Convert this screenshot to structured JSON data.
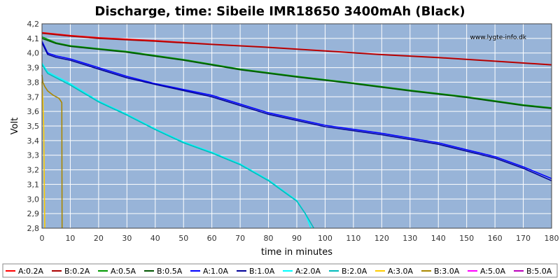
{
  "chart_data": {
    "type": "line",
    "title": "Discharge, time: Sibeile IMR18650 3400mAh (Black)",
    "xlabel": "time in minutes",
    "ylabel": "Volt",
    "xlim": [
      0,
      180
    ],
    "ylim": [
      2.8,
      4.2
    ],
    "x_ticks": [
      0,
      10,
      20,
      30,
      40,
      50,
      60,
      70,
      80,
      90,
      100,
      110,
      120,
      130,
      140,
      150,
      160,
      170,
      180
    ],
    "y_ticks": [
      2.8,
      2.9,
      3.0,
      3.1,
      3.2,
      3.3,
      3.4,
      3.5,
      3.6,
      3.7,
      3.8,
      3.9,
      4.0,
      4.1,
      4.2
    ],
    "y_tick_labels": [
      "2,8",
      "2,9",
      "3,0",
      "3,1",
      "3,2",
      "3,3",
      "3,4",
      "3,5",
      "3,6",
      "3,7",
      "3,8",
      "3,9",
      "4,0",
      "4,1",
      "4,2"
    ],
    "grid": true,
    "background": "#98b4d8",
    "watermark": "www.lygte-info.dk",
    "legend_position": "bottom",
    "series": [
      {
        "name": "A:0.2A",
        "color": "#ff0000",
        "x": [
          0,
          10,
          20,
          40,
          60,
          80,
          100,
          120,
          140,
          160,
          180
        ],
        "y": [
          4.14,
          4.12,
          4.105,
          4.085,
          4.06,
          4.04,
          4.015,
          3.99,
          3.97,
          3.945,
          3.92
        ]
      },
      {
        "name": "B:0.2A",
        "color": "#aa0000",
        "x": [
          0,
          10,
          20,
          40,
          60,
          80,
          100,
          120,
          140,
          160,
          180
        ],
        "y": [
          4.135,
          4.115,
          4.1,
          4.08,
          4.058,
          4.038,
          4.013,
          3.988,
          3.968,
          3.943,
          3.918
        ]
      },
      {
        "name": "A:0.5A",
        "color": "#009900",
        "x": [
          0,
          5,
          10,
          20,
          30,
          50,
          70,
          90,
          110,
          130,
          150,
          170,
          180
        ],
        "y": [
          4.11,
          4.07,
          4.05,
          4.03,
          4.01,
          3.955,
          3.89,
          3.84,
          3.795,
          3.745,
          3.7,
          3.645,
          3.625
        ]
      },
      {
        "name": "B:0.5A",
        "color": "#005500",
        "x": [
          0,
          5,
          10,
          20,
          30,
          50,
          70,
          90,
          110,
          130,
          150,
          170,
          180
        ],
        "y": [
          4.1,
          4.065,
          4.045,
          4.025,
          4.005,
          3.95,
          3.885,
          3.835,
          3.79,
          3.74,
          3.695,
          3.64,
          3.62
        ]
      },
      {
        "name": "A:1.0A",
        "color": "#0000ff",
        "x": [
          0,
          2,
          5,
          10,
          20,
          30,
          40,
          60,
          80,
          100,
          120,
          140,
          160,
          170,
          180
        ],
        "y": [
          4.08,
          4.0,
          3.98,
          3.96,
          3.9,
          3.84,
          3.79,
          3.71,
          3.59,
          3.505,
          3.45,
          3.385,
          3.29,
          3.22,
          3.14
        ]
      },
      {
        "name": "B:1.0A",
        "color": "#000099",
        "x": [
          0,
          2,
          5,
          10,
          20,
          30,
          40,
          60,
          80,
          100,
          120,
          140,
          160,
          170,
          180
        ],
        "y": [
          4.07,
          3.99,
          3.97,
          3.95,
          3.89,
          3.83,
          3.785,
          3.7,
          3.58,
          3.495,
          3.44,
          3.375,
          3.28,
          3.21,
          3.125
        ]
      },
      {
        "name": "A:2.0A",
        "color": "#00ffff",
        "x": [
          0,
          2,
          5,
          10,
          20,
          30,
          40,
          50,
          60,
          70,
          80,
          85,
          90,
          93,
          95
        ],
        "y": [
          3.93,
          3.87,
          3.84,
          3.79,
          3.67,
          3.58,
          3.48,
          3.39,
          3.32,
          3.24,
          3.13,
          3.06,
          2.99,
          2.9,
          2.8
        ]
      },
      {
        "name": "B:2.0A",
        "color": "#00bbbb",
        "x": [
          0,
          2,
          5,
          10,
          20,
          30,
          40,
          50,
          60,
          70,
          80,
          85,
          90,
          93,
          96
        ],
        "y": [
          3.92,
          3.86,
          3.83,
          3.78,
          3.665,
          3.575,
          3.475,
          3.385,
          3.315,
          3.235,
          3.125,
          3.055,
          2.985,
          2.9,
          2.8
        ]
      },
      {
        "name": "A:3.0A",
        "color": "#ffcc00",
        "x": [
          0,
          0.3,
          0.6,
          1.0
        ],
        "y": [
          3.8,
          3.68,
          3.5,
          2.8
        ]
      },
      {
        "name": "B:3.0A",
        "color": "#aa8800",
        "x": [
          0,
          0.3,
          1,
          2,
          4,
          6,
          7,
          7.1
        ],
        "y": [
          3.85,
          3.8,
          3.77,
          3.74,
          3.71,
          3.69,
          3.66,
          2.8
        ]
      },
      {
        "name": "A:5.0A",
        "color": "#ff00ff",
        "x": [],
        "y": []
      },
      {
        "name": "B:5.0A",
        "color": "#bb00bb",
        "x": [],
        "y": []
      }
    ]
  }
}
